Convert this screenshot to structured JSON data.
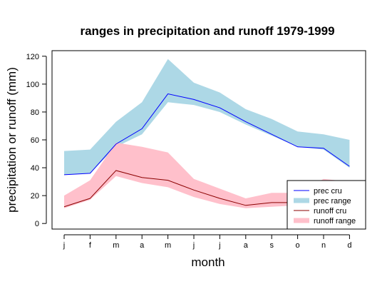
{
  "chart_data": {
    "type": "area",
    "title": "ranges in precipitation and runoff 1979-1999",
    "xlabel": "month",
    "ylabel": "precipitation or runoff (mm)",
    "categories": [
      "j",
      "f",
      "m",
      "a",
      "m",
      "j",
      "j",
      "a",
      "s",
      "o",
      "n",
      "d"
    ],
    "ylim": [
      -4,
      124
    ],
    "yticks": [
      0,
      20,
      40,
      60,
      80,
      100,
      120
    ],
    "legend_position": "bottom-right",
    "series": [
      {
        "name": "prec range",
        "kind": "range",
        "color": "#ADD8E6",
        "lower": [
          35,
          36,
          55,
          64,
          87,
          85,
          80,
          71,
          63,
          55,
          53,
          40
        ],
        "upper": [
          52,
          53,
          73,
          87,
          118,
          101,
          94,
          82,
          75,
          66,
          64,
          60
        ]
      },
      {
        "name": "runoff range",
        "kind": "range",
        "color": "#FFC0CB",
        "lower": [
          11,
          17,
          34,
          29,
          26,
          19,
          14,
          11,
          12,
          13,
          14,
          14
        ],
        "upper": [
          20,
          31,
          58,
          55,
          51,
          32,
          25,
          18,
          22,
          22,
          32,
          30
        ]
      },
      {
        "name": "prec cru",
        "kind": "line",
        "color": "#0000FF",
        "values": [
          35,
          36,
          57,
          68,
          93,
          89,
          83,
          73,
          64,
          55,
          54,
          41
        ]
      },
      {
        "name": "runoff cru",
        "kind": "line",
        "color": "#8B0000",
        "values": [
          12,
          18,
          38,
          33,
          31,
          24,
          18,
          13,
          15,
          15,
          16,
          16
        ]
      }
    ]
  }
}
